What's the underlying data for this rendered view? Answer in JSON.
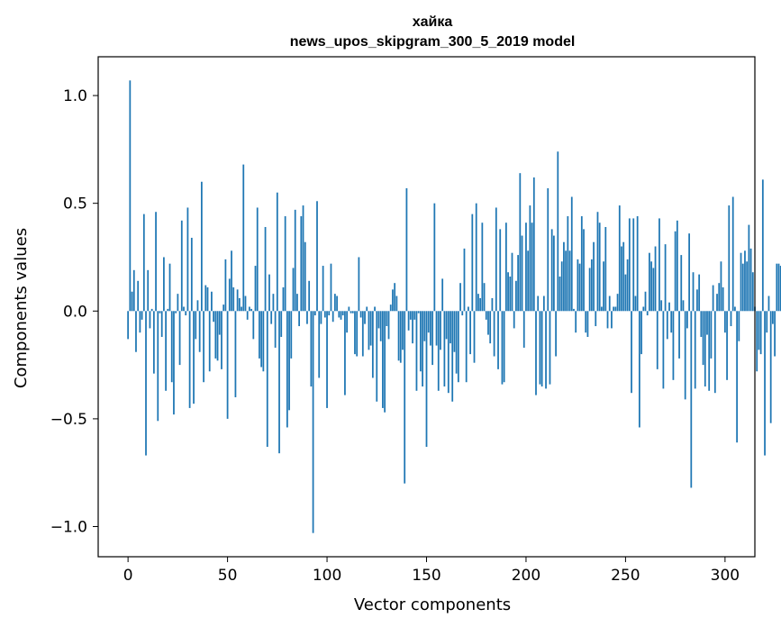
{
  "chart_data": {
    "type": "bar",
    "title": "хайка",
    "subtitle": "news_upos_skipgram_300_5_2019 model",
    "xlabel": "Vector components",
    "ylabel": "Components values",
    "xlim": [
      -15,
      315
    ],
    "ylim": [
      -1.14,
      1.18
    ],
    "xticks": [
      0,
      50,
      100,
      150,
      200,
      250,
      300
    ],
    "xtick_labels": [
      "0",
      "50",
      "100",
      "150",
      "200",
      "250",
      "300"
    ],
    "yticks": [
      -1.0,
      -0.5,
      0.0,
      0.5,
      1.0
    ],
    "ytick_labels": [
      "−1.0",
      "−0.5",
      "0.0",
      "0.5",
      "1.0"
    ],
    "bar_color": "#1f77b4",
    "grid": false,
    "values": [
      -0.13,
      1.07,
      0.09,
      0.19,
      -0.19,
      0.14,
      -0.1,
      -0.04,
      0.45,
      -0.67,
      0.19,
      -0.08,
      0.01,
      -0.29,
      0.46,
      -0.51,
      -0.01,
      -0.12,
      0.25,
      -0.37,
      0.01,
      0.22,
      -0.33,
      -0.48,
      -0.01,
      0.08,
      -0.25,
      0.42,
      0.02,
      -0.02,
      0.48,
      -0.45,
      0.34,
      -0.43,
      -0.13,
      0.05,
      -0.19,
      0.6,
      -0.33,
      0.12,
      0.11,
      -0.28,
      0.09,
      -0.05,
      -0.22,
      -0.23,
      -0.11,
      -0.27,
      0.03,
      0.24,
      -0.5,
      0.15,
      0.28,
      0.11,
      -0.4,
      0.1,
      0.06,
      0.02,
      0.68,
      0.07,
      -0.04,
      0.02,
      0.01,
      -0.13,
      0.21,
      0.48,
      -0.22,
      -0.26,
      -0.28,
      0.39,
      -0.63,
      0.17,
      -0.06,
      0.08,
      -0.17,
      0.55,
      -0.66,
      -0.12,
      0.11,
      0.44,
      -0.54,
      -0.46,
      -0.22,
      0.2,
      0.47,
      0.08,
      -0.07,
      0.44,
      0.49,
      0.32,
      -0.06,
      0.14,
      -0.35,
      -1.03,
      -0.02,
      0.51,
      -0.31,
      -0.06,
      0.21,
      -0.03,
      -0.45,
      -0.02,
      0.22,
      -0.05,
      0.08,
      0.07,
      -0.03,
      -0.04,
      -0.02,
      -0.39,
      -0.1,
      0.02,
      -0.01,
      -0.01,
      -0.2,
      -0.21,
      0.25,
      -0.03,
      -0.21,
      -0.06,
      0.02,
      -0.18,
      -0.16,
      -0.31,
      0.02,
      -0.42,
      -0.08,
      -0.14,
      -0.45,
      -0.47,
      -0.07,
      -0.13,
      0.03,
      0.1,
      0.13,
      0.07,
      -0.23,
      -0.24,
      -0.18,
      -0.8,
      0.57,
      -0.09,
      -0.04,
      -0.15,
      -0.04,
      -0.37,
      -0.01,
      -0.28,
      -0.35,
      -0.14,
      -0.63,
      -0.1,
      -0.16,
      -0.25,
      0.5,
      -0.16,
      -0.37,
      -0.18,
      0.15,
      -0.35,
      -0.13,
      -0.38,
      -0.15,
      -0.42,
      -0.19,
      -0.29,
      -0.33,
      0.13,
      -0.02,
      0.29,
      -0.33,
      0.02,
      -0.2,
      0.45,
      -0.24,
      0.5,
      0.08,
      0.06,
      0.41,
      0.13,
      -0.04,
      -0.11,
      -0.15,
      0.06,
      -0.21,
      0.48,
      -0.27,
      0.38,
      -0.34,
      -0.33,
      0.41,
      0.18,
      0.16,
      0.27,
      -0.08,
      0.14,
      0.26,
      0.64,
      0.35,
      -0.17,
      0.41,
      0.28,
      0.49,
      0.41,
      0.62,
      -0.39,
      0.07,
      -0.34,
      -0.35,
      0.07,
      -0.36,
      0.57,
      -0.34,
      0.38,
      0.35,
      -0.21,
      0.74,
      0.16,
      0.23,
      0.32,
      0.28,
      0.44,
      0.28,
      0.53,
      0.01,
      -0.1,
      0.24,
      0.22,
      0.44,
      0.38,
      -0.1,
      -0.12,
      0.2,
      0.24,
      0.32,
      -0.07,
      0.46,
      0.41,
      0.02,
      0.23,
      0.39,
      -0.08,
      0.07,
      -0.08,
      0.02,
      0.02,
      0.08,
      0.49,
      0.3,
      0.32,
      0.17,
      0.24,
      0.43,
      -0.38,
      0.43,
      0.07,
      0.44,
      -0.54,
      -0.2,
      0.02,
      0.09,
      -0.02,
      0.27,
      0.23,
      0.2,
      0.3,
      -0.27,
      0.43,
      0.05,
      -0.36,
      0.31,
      -0.13,
      0.04,
      -0.1,
      -0.32,
      0.37,
      0.42,
      -0.22,
      0.26,
      0.05,
      -0.41,
      -0.08,
      0.36,
      -0.82,
      0.18,
      -0.36,
      0.1,
      0.17,
      -0.12,
      -0.25,
      -0.35,
      -0.11,
      -0.37,
      -0.22,
      0.12,
      -0.38,
      0.08,
      0.13,
      0.23,
      0.11,
      -0.1,
      -0.32,
      0.49,
      -0.07,
      0.53,
      0.02,
      -0.61,
      -0.14,
      0.27,
      0.22,
      0.28,
      0.23,
      0.4,
      0.29,
      0.18,
      0.02,
      -0.28,
      -0.18,
      -0.2,
      0.61,
      -0.67,
      -0.1,
      0.07,
      -0.52,
      -0.06,
      -0.21,
      0.22,
      0.22,
      0.21,
      0.06,
      -0.58,
      0.23,
      0.42,
      -0.35,
      0.27,
      0.22,
      0.07,
      -0.11,
      0.05,
      -0.37,
      0.17,
      0.72,
      -0.27,
      -0.58,
      0.13,
      -0.2,
      -0.05,
      0.03,
      0.12,
      0.05,
      0.16,
      0.19,
      0.22,
      0.39,
      0.33,
      0.56,
      -0.25,
      -0.03,
      0.42,
      -0.15,
      0.35,
      -0.27,
      0.23,
      0.14,
      0.17,
      -0.2,
      0.34,
      0.2,
      0.23,
      0.47,
      -0.38,
      -0.06,
      0.1,
      0.01,
      0.21,
      0.34,
      -0.47,
      0.17,
      0.07,
      -0.27,
      0.44,
      0.13,
      0.35,
      0.25,
      -0.48,
      -0.06,
      0.21,
      0.14,
      0.04,
      0.39,
      0.13,
      0.2,
      0.23,
      -0.36,
      0.19,
      0.17,
      0.04,
      -0.03,
      0.52,
      0.27,
      0.24,
      0.36,
      0.33,
      -0.3,
      -0.05,
      0.05,
      0.5,
      -0.85,
      0.03,
      -0.29,
      -0.22,
      0.6,
      0.09,
      0.27,
      0.72,
      0.54,
      -0.27,
      0.07,
      0.06,
      -0.29,
      -0.13,
      -0.05,
      -0.15,
      0.27,
      0.29,
      -0.04,
      0.17,
      0.04,
      0.25,
      -0.05,
      -0.14,
      0.35,
      0.41,
      0.14,
      0.5,
      -0.09,
      0.14,
      0.42,
      -0.35,
      -0.01,
      0.14,
      0.21,
      -0.09,
      0.21,
      0.23,
      0.21,
      0.3,
      -0.27,
      0.18,
      0.24,
      0.33,
      0.2,
      -0.06,
      -0.13,
      0.15,
      -0.49,
      0.06,
      0.44,
      0.2,
      0.23,
      0.38,
      -0.02,
      0.28,
      0.23,
      0.05,
      0.27,
      -0.03,
      0.19,
      0.15,
      -0.31,
      0.28,
      0.14,
      0.23,
      0.36,
      0.33,
      0.42,
      -0.07,
      0.38,
      0.18,
      -0.05,
      0.47,
      -0.26,
      -0.11,
      0.13,
      0.33,
      -0.25,
      0.34,
      0.27,
      -0.37,
      0.03,
      0.06,
      0.3,
      0.06,
      0.36,
      0.21,
      0.19,
      0.08,
      0.28,
      -0.01,
      0.43,
      0.36,
      -0.19,
      0.47,
      0.18,
      0.29,
      -0.1,
      0.47,
      -0.21,
      0.14,
      0.07,
      0.22,
      0.25,
      -0.05,
      -0.12,
      0.3,
      0.1,
      0.44,
      -0.03,
      0.43,
      0.25,
      0.36,
      -0.06,
      0.36,
      0.43,
      0.13,
      -0.49,
      0.46,
      0.21,
      0.03,
      0.22,
      -0.09,
      0.31,
      0.18,
      0.32,
      0.3,
      0.4,
      0.14,
      0.06,
      0.3,
      -0.33,
      0.33,
      0.11,
      0.44,
      0.14,
      0.46,
      0.2,
      -0.03,
      0.33,
      0.31,
      -0.09,
      0.5,
      0.33,
      -0.08,
      0.48,
      0.43,
      0.23,
      0.29,
      -0.17,
      0.2,
      0.37,
      -0.2,
      0.47,
      0.13,
      0.05,
      0.18,
      0.37,
      0.23,
      0.3,
      0.42,
      0.06,
      0.42,
      0.22,
      -0.39,
      0.39,
      0.44,
      0.3,
      0.43,
      0.27,
      0.11,
      0.49,
      0.3,
      0.23,
      0.25,
      0.14,
      0.49,
      0.45,
      0.4,
      0.21,
      0.22,
      0.32,
      -0.07,
      0.37,
      0.18,
      0.26,
      0.45,
      0.4,
      -0.05,
      0.41,
      0.28,
      0.4,
      0.37,
      0.31,
      0.46,
      0.42,
      0.31,
      0.18,
      0.47,
      0.36,
      0.22,
      0.49,
      -0.02,
      0.32,
      0.44,
      0.43,
      0.33,
      0.48,
      0.45,
      0.46,
      0.32,
      0.48,
      0.39,
      0.26,
      0.46,
      0.49,
      0.29,
      0.47,
      0.48,
      0.43,
      0.35,
      0.46,
      0.39,
      0.29,
      0.44,
      0.48,
      0.45,
      0.36,
      0.43,
      0.47,
      0.48,
      0.44,
      0.49,
      0.41,
      0.48,
      0.45,
      0.49,
      0.46,
      0.43,
      0.47,
      0.49,
      0.48,
      0.45,
      0.49,
      0.47,
      0.48,
      0.49,
      0.46,
      0.48,
      0.49,
      0.47,
      0.49,
      0.48,
      0.49,
      0.48,
      0.49,
      0.49,
      0.48,
      0.49,
      0.49,
      0.49,
      0.49,
      0.49,
      0.49
    ]
  }
}
